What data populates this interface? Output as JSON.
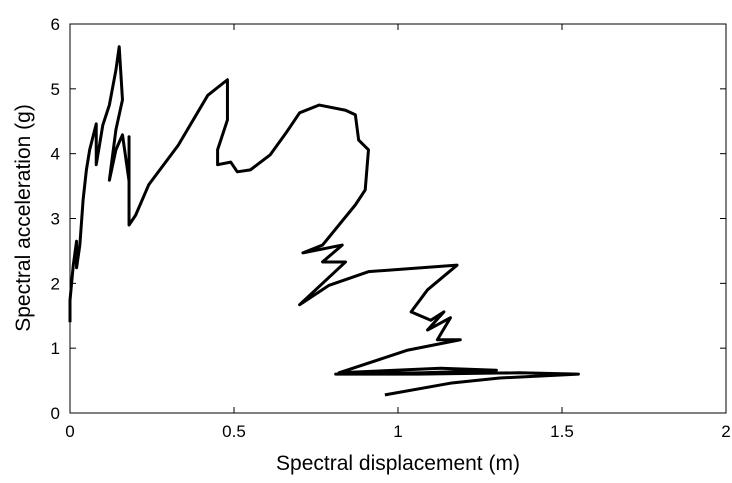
{
  "chart_data": {
    "type": "line",
    "xlabel": "Spectral displacement (m)",
    "ylabel": "Spectral acceleration (g)",
    "xlim": [
      0,
      2
    ],
    "xticks": [
      0,
      0.5,
      1,
      1.5,
      2
    ],
    "ylim": [
      0,
      6
    ],
    "yticks": [
      0,
      1,
      2,
      3,
      4,
      5,
      6
    ],
    "series": [
      {
        "color": "#000000",
        "x": [
          0.0,
          0.0,
          0.01,
          0.02,
          0.02,
          0.03,
          0.04,
          0.05,
          0.06,
          0.08,
          0.08,
          0.1,
          0.12,
          0.14,
          0.15,
          0.16,
          0.14,
          0.12,
          0.14,
          0.16,
          0.18,
          0.18,
          0.18,
          0.18,
          0.2,
          0.24,
          0.33,
          0.42,
          0.48,
          0.48,
          0.45,
          0.45,
          0.49,
          0.51,
          0.55,
          0.61,
          0.66,
          0.7,
          0.76,
          0.84,
          0.87,
          0.88,
          0.91,
          0.9,
          0.87,
          0.77,
          0.71,
          0.83,
          0.77,
          0.84,
          0.7,
          0.79,
          0.91,
          1.18,
          1.09,
          1.04,
          1.1,
          1.14,
          1.09,
          1.16,
          1.12,
          1.19,
          1.03,
          0.82,
          1.13,
          1.3,
          1.08,
          0.81,
          1.06,
          1.37,
          1.55,
          1.31,
          1.16,
          0.96
        ],
        "values": [
          1.4,
          1.74,
          2.28,
          2.65,
          2.24,
          2.59,
          3.29,
          3.75,
          4.06,
          4.46,
          3.83,
          4.44,
          4.75,
          5.29,
          5.65,
          4.83,
          4.37,
          3.59,
          4.06,
          4.29,
          3.58,
          4.26,
          3.29,
          2.9,
          3.05,
          3.52,
          4.13,
          4.9,
          5.14,
          4.52,
          4.06,
          3.83,
          3.87,
          3.72,
          3.75,
          3.98,
          4.33,
          4.63,
          4.75,
          4.67,
          4.6,
          4.21,
          4.06,
          3.44,
          3.21,
          2.59,
          2.47,
          2.59,
          2.33,
          2.33,
          1.67,
          1.97,
          2.18,
          2.28,
          1.9,
          1.56,
          1.43,
          1.56,
          1.28,
          1.47,
          1.13,
          1.13,
          0.97,
          0.62,
          0.69,
          0.66,
          0.62,
          0.6,
          0.6,
          0.62,
          0.6,
          0.54,
          0.46,
          0.28
        ]
      }
    ]
  }
}
